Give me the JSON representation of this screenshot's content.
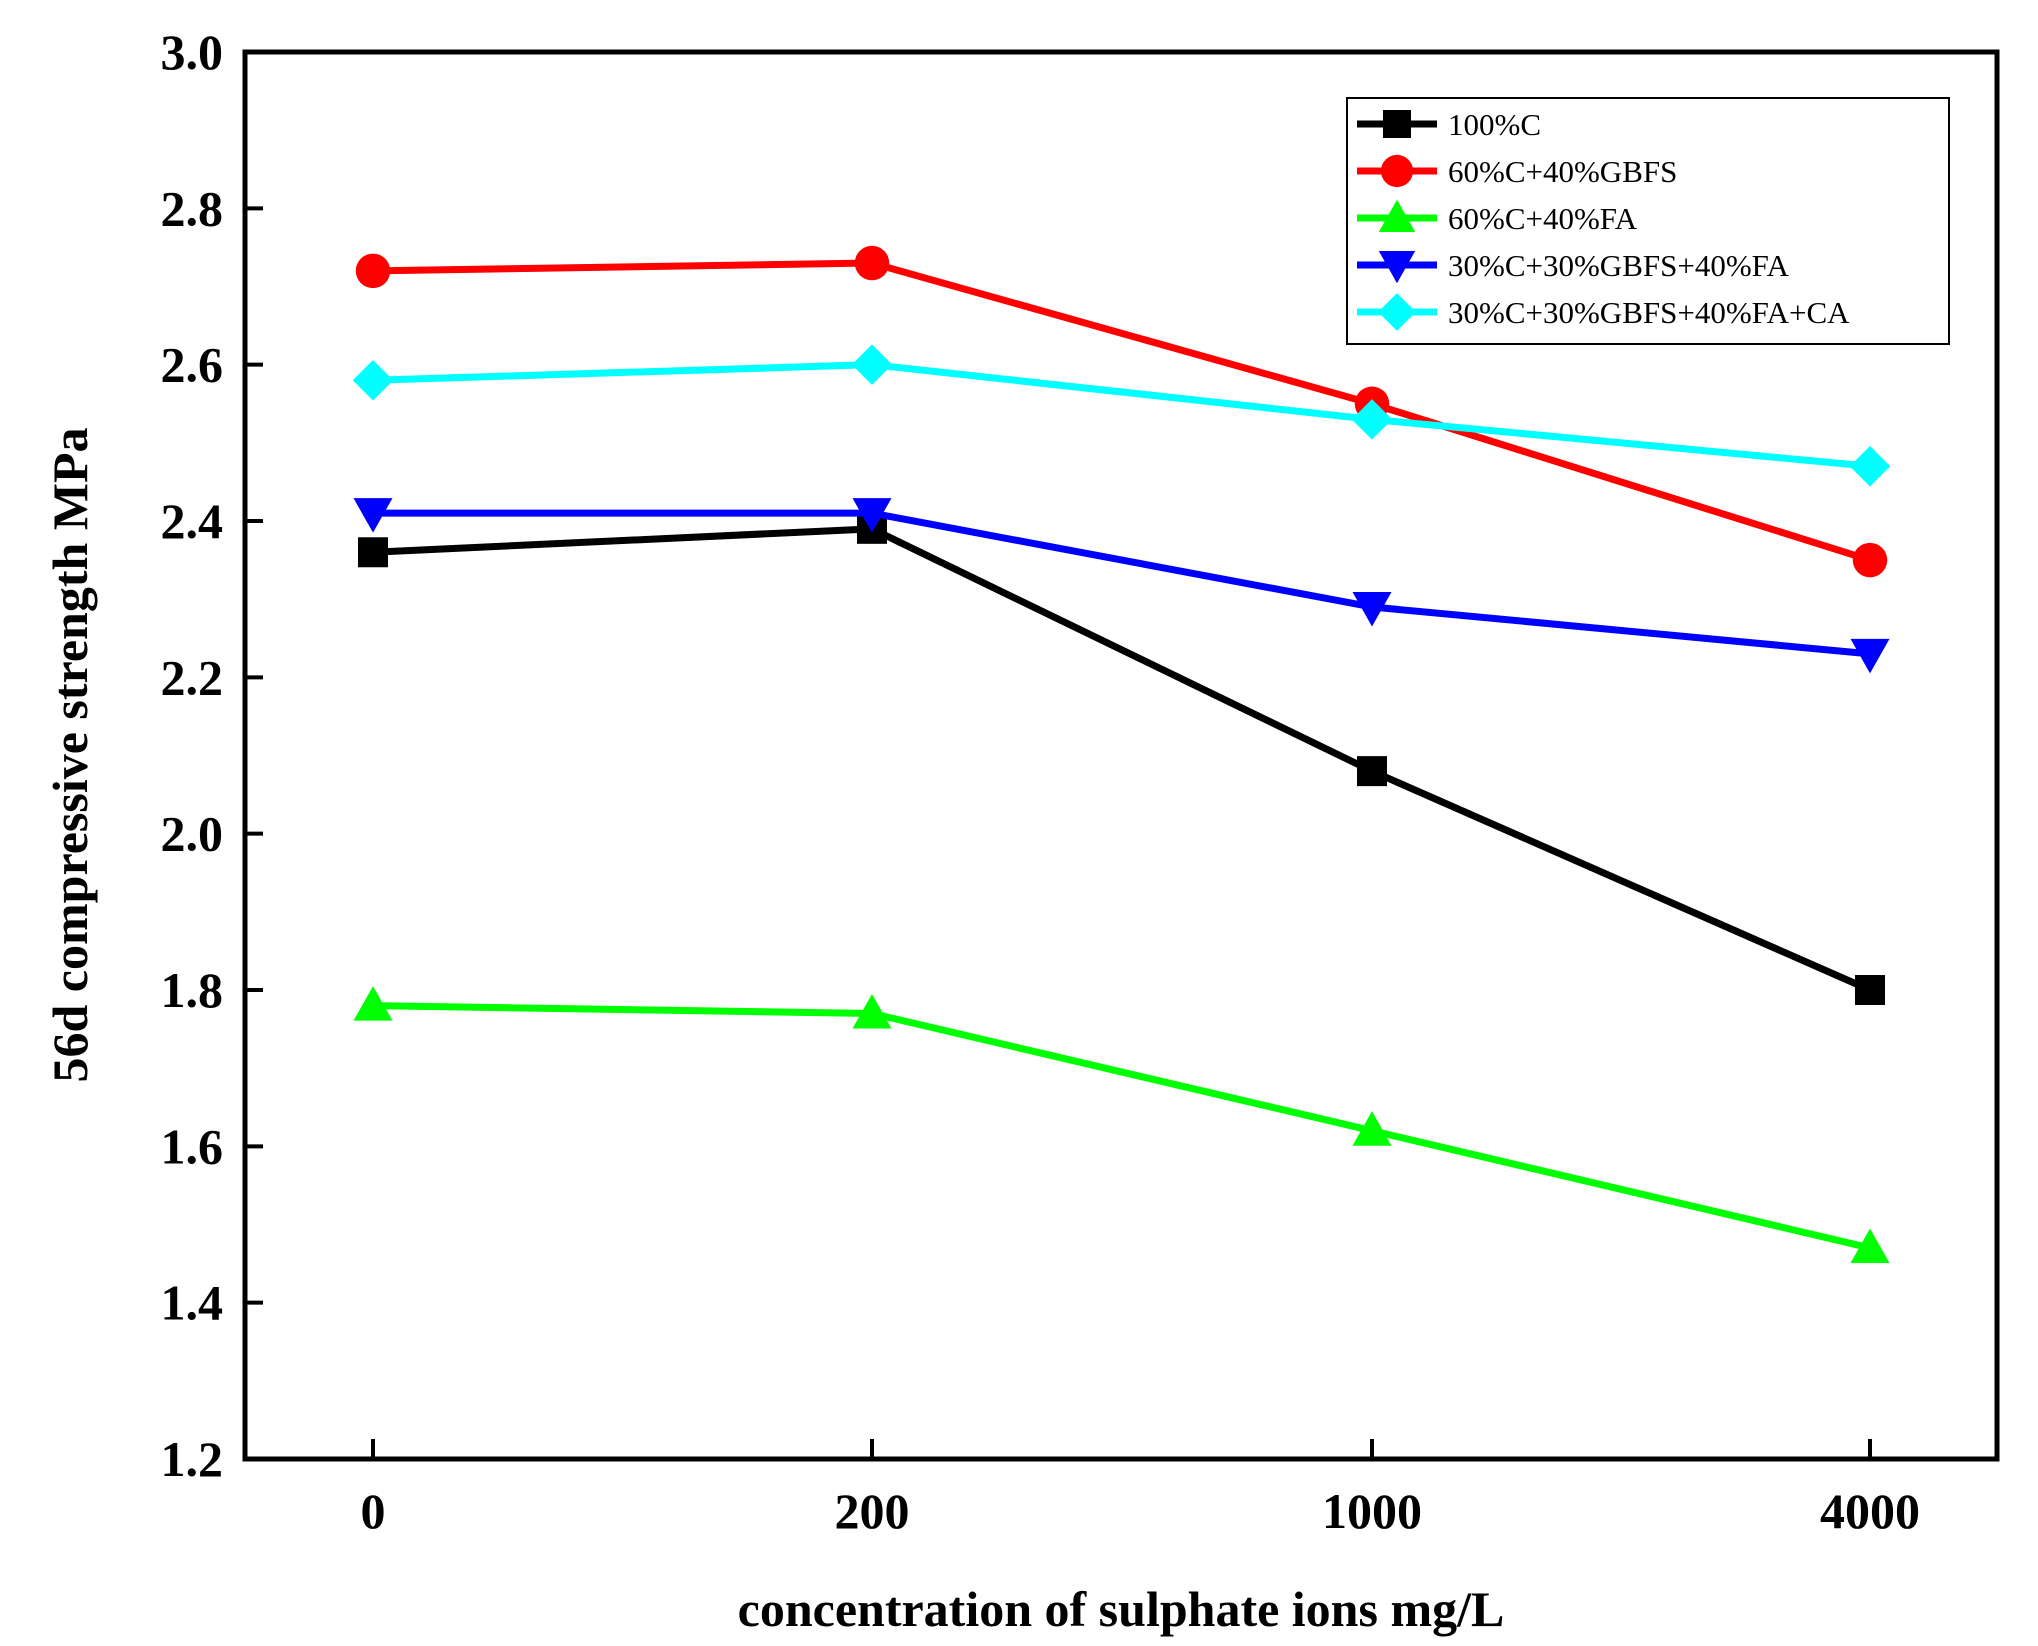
{
  "chart_data": {
    "type": "line",
    "title": "",
    "xlabel": "concentration of sulphate ions mg/L",
    "ylabel": "56d compressive strength MPa",
    "categories": [
      "0",
      "200",
      "1000",
      "4000"
    ],
    "ylim": [
      1.2,
      3.0
    ],
    "yticks": [
      "1.2",
      "1.4",
      "1.6",
      "1.8",
      "2.0",
      "2.2",
      "2.4",
      "2.6",
      "2.8",
      "3.0"
    ],
    "grid": false,
    "legend_position": "top-right",
    "series": [
      {
        "name": "100%C",
        "color": "#000000",
        "marker": "square",
        "values": [
          2.36,
          2.39,
          2.08,
          1.8
        ]
      },
      {
        "name": "60%C+40%GBFS",
        "color": "#ff0000",
        "marker": "circle",
        "values": [
          2.72,
          2.73,
          2.55,
          2.35
        ]
      },
      {
        "name": "60%C+40%FA",
        "color": "#00ff00",
        "marker": "triangle-up",
        "values": [
          1.78,
          1.77,
          1.62,
          1.47
        ]
      },
      {
        "name": "30%C+30%GBFS+40%FA",
        "color": "#0000ff",
        "marker": "triangle-down",
        "values": [
          2.41,
          2.41,
          2.29,
          2.23
        ]
      },
      {
        "name": "30%C+30%GBFS+40%FA+CA",
        "color": "#00ffff",
        "marker": "diamond",
        "values": [
          2.58,
          2.6,
          2.53,
          2.47
        ]
      }
    ]
  }
}
